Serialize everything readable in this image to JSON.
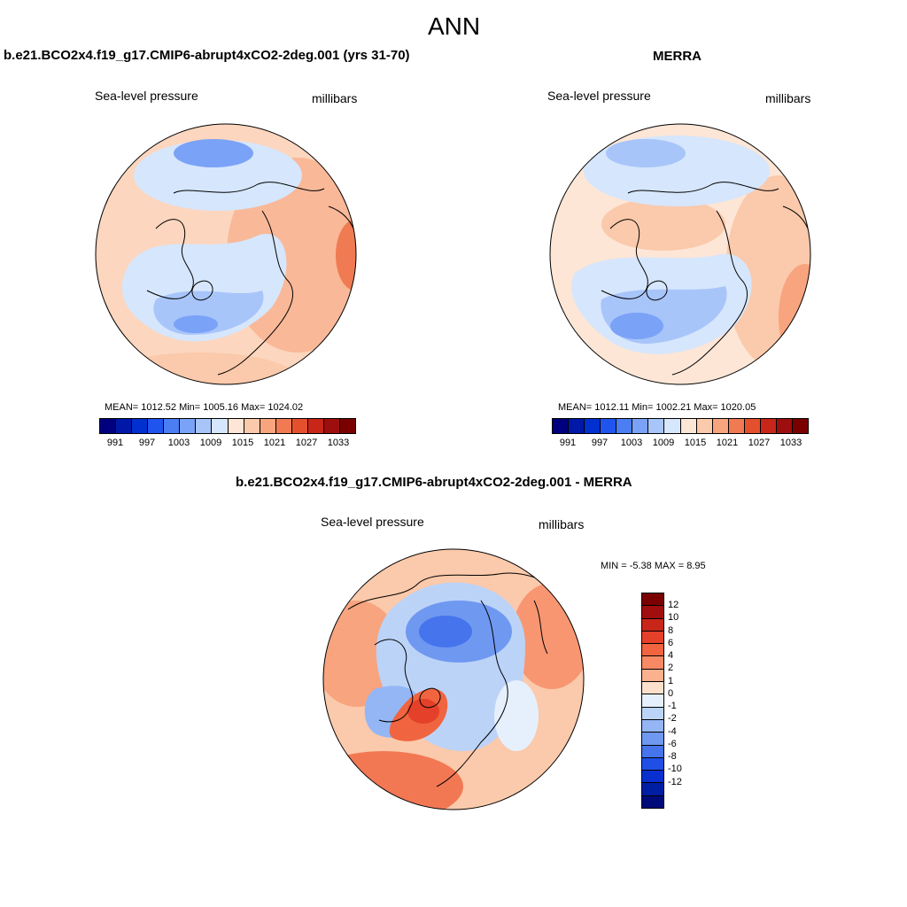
{
  "figure": {
    "title": "ANN",
    "panel1_title": "b.e21.BCO2x4.f19_g17.CMIP6-abrupt4xCO2-2deg.001 (yrs 31-70)",
    "panel2_title": "MERRA",
    "panel3_title": "b.e21.BCO2x4.f19_g17.CMIP6-abrupt4xCO2-2deg.001 - MERRA"
  },
  "panels": [
    {
      "variable": "Sea-level pressure",
      "units": "millibars",
      "stats": "MEAN= 1012.52  Min= 1005.16  Max= 1024.02"
    },
    {
      "variable": "Sea-level pressure",
      "units": "millibars",
      "stats": "MEAN= 1012.11  Min= 1002.21  Max= 1020.05"
    },
    {
      "variable": "Sea-level pressure",
      "units": "millibars",
      "stats": "MIN =  -5.38 MAX =   8.95"
    }
  ],
  "colorbar_abs": {
    "colors": [
      "#00007f",
      "#0018a8",
      "#0030d0",
      "#1f55ee",
      "#4b7df3",
      "#7aa2f7",
      "#a8c5fa",
      "#d6e6fc",
      "#fde6d6",
      "#fbc9ab",
      "#f7a47f",
      "#f07b53",
      "#e4502d",
      "#c9261a",
      "#9f0e0e",
      "#7a0000"
    ],
    "ticks": [
      "991",
      "997",
      "1003",
      "1009",
      "1015",
      "1021",
      "1027",
      "1033"
    ]
  },
  "colorbar_diff": {
    "colors": [
      "#7a0000",
      "#a10e0e",
      "#c9261a",
      "#e4402a",
      "#f0643f",
      "#f78a64",
      "#fbb08e",
      "#fde0cc",
      "#e6f0fd",
      "#bcd3f8",
      "#94b6f5",
      "#6f98f1",
      "#4574ec",
      "#1f4fe6",
      "#0a2fcf",
      "#001ea3",
      "#000b7a"
    ],
    "ticks": [
      "12",
      "10",
      "8",
      "6",
      "4",
      "2",
      "1",
      "0",
      "-1",
      "-2",
      "-4",
      "-6",
      "-8",
      "-10",
      "-12"
    ]
  }
}
